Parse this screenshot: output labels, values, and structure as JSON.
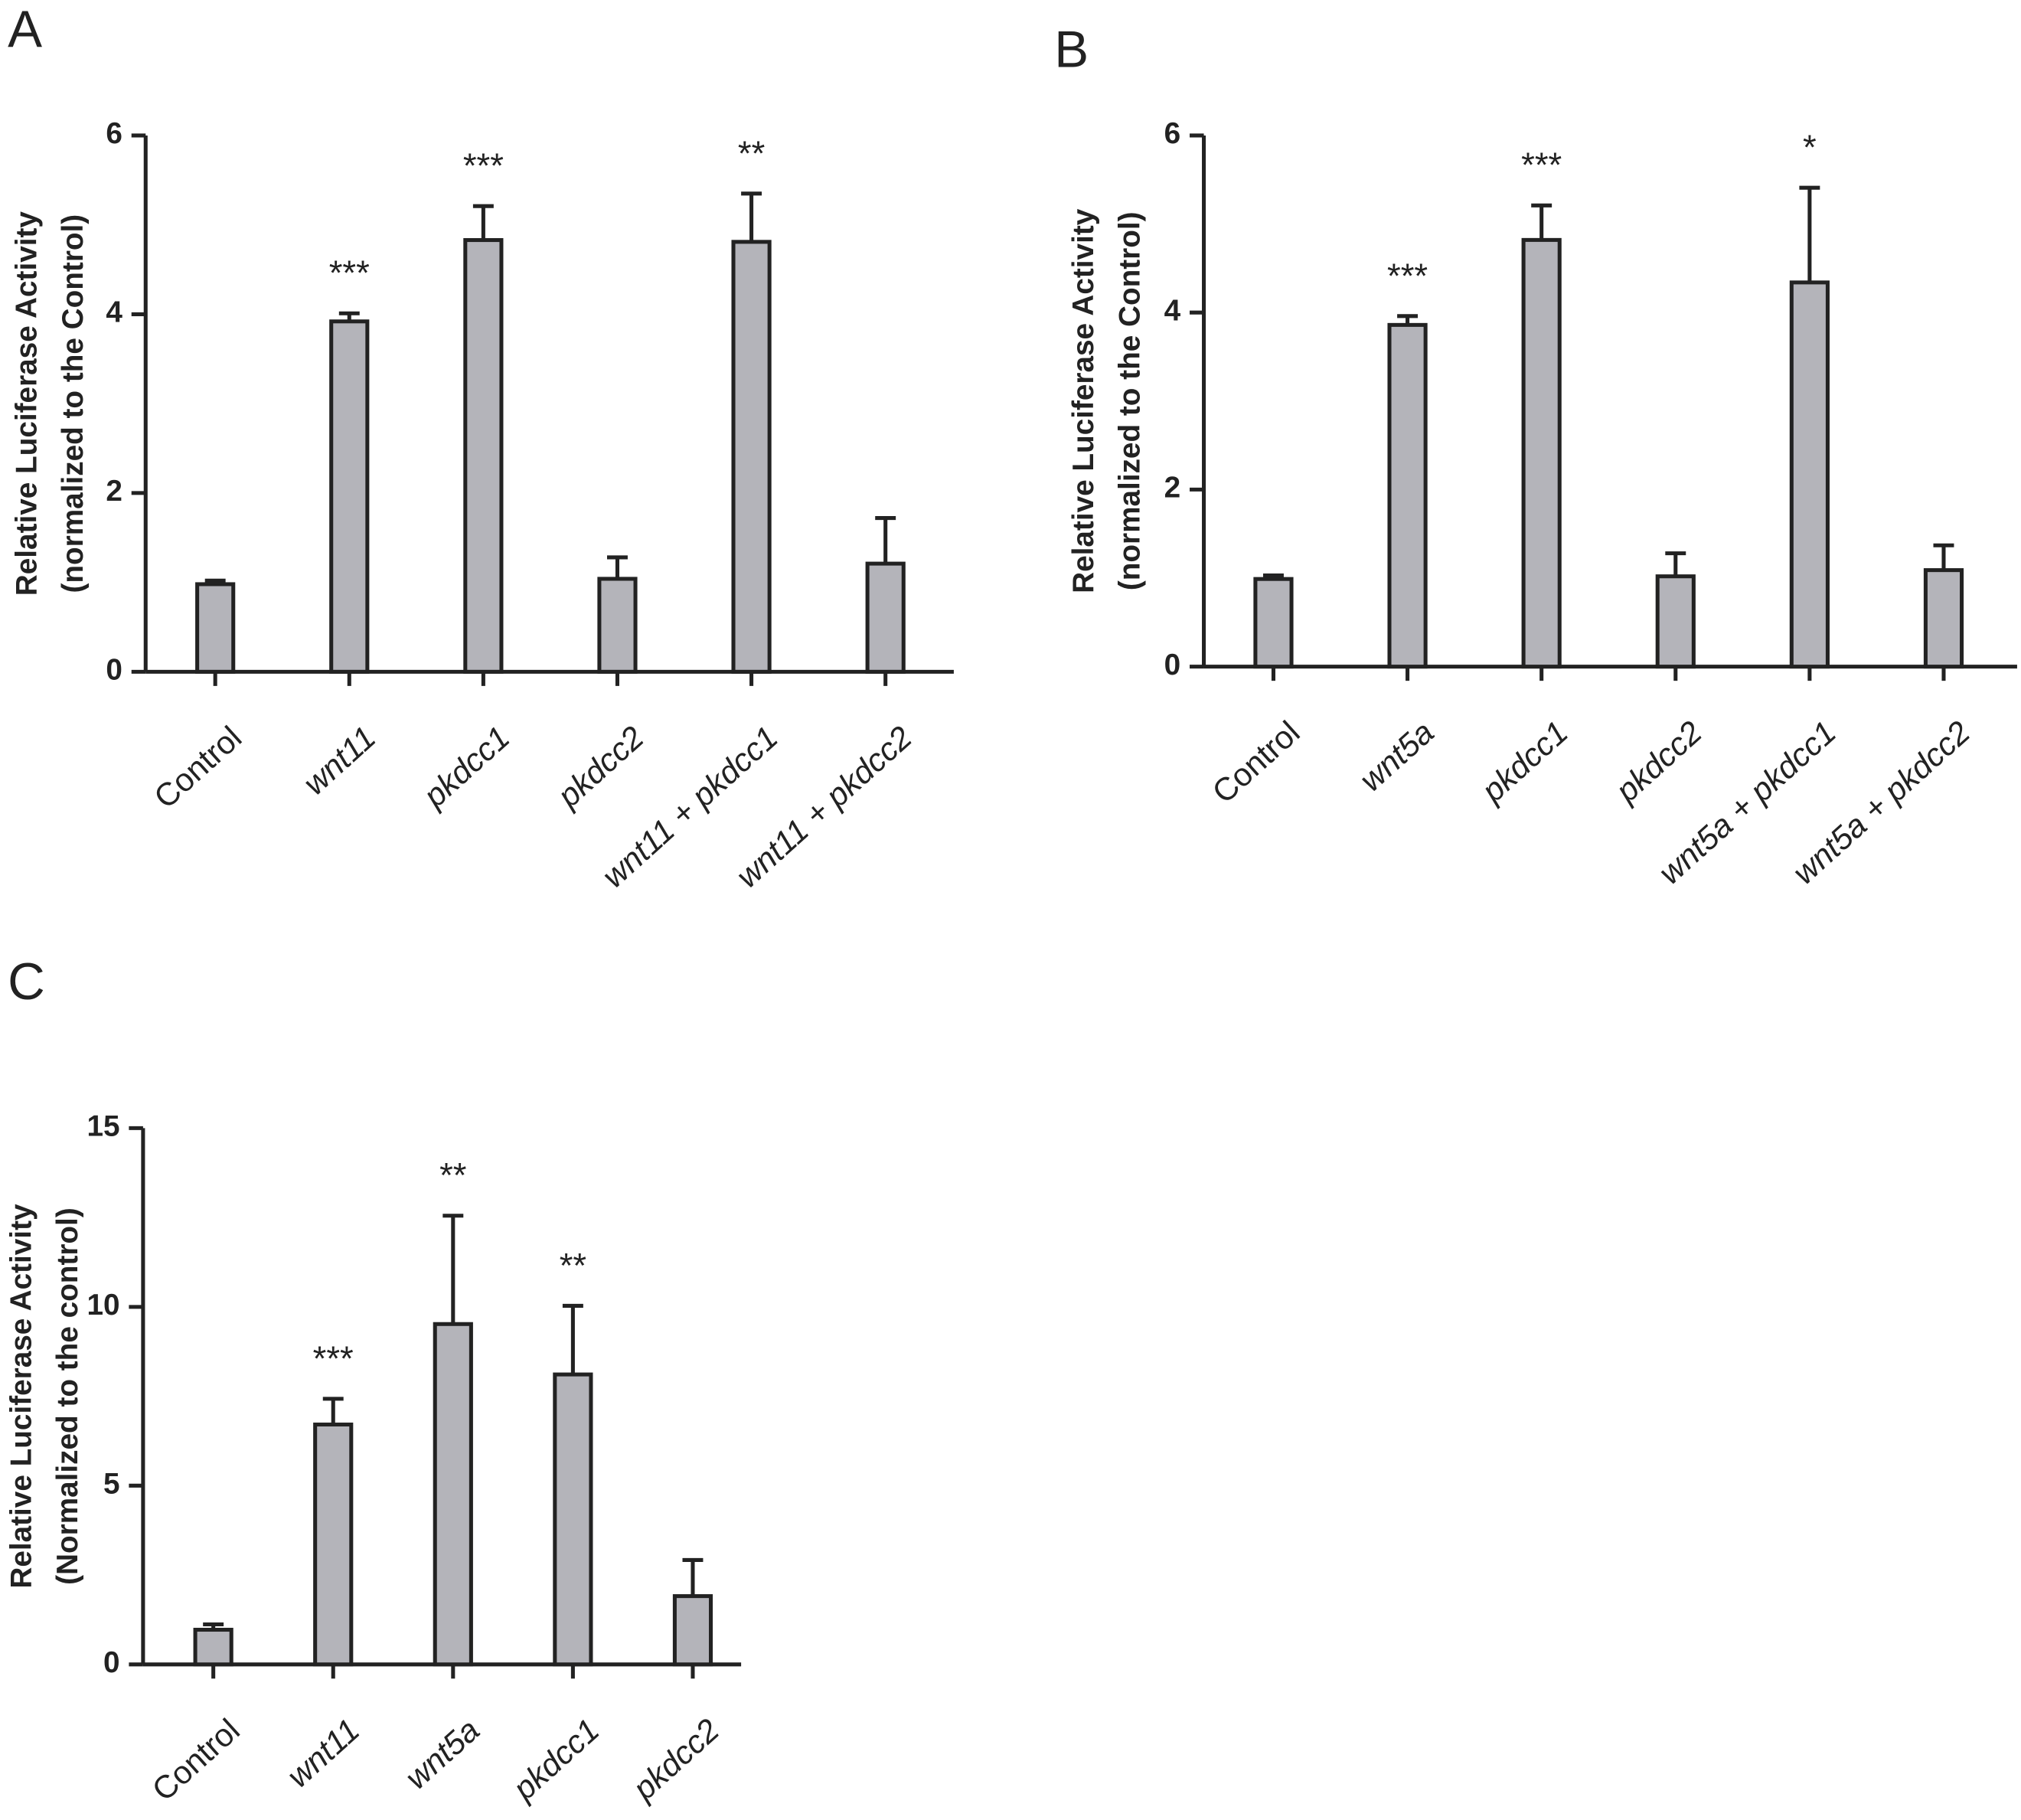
{
  "chart_data": [
    {
      "type": "bar",
      "panel_label": "A",
      "ylabel": [
        "Relative Luciferase Activity",
        "(normalized to the Control)"
      ],
      "categories": [
        "Control",
        "wnt11",
        "pkdcc1",
        "pkdcc2",
        "wnt11 + pkdcc1",
        "wnt11 + pkdcc2"
      ],
      "values": [
        0.98,
        3.92,
        4.83,
        1.04,
        4.81,
        1.21
      ],
      "errors": [
        0.04,
        0.09,
        0.38,
        0.24,
        0.54,
        0.51
      ],
      "annotations": [
        null,
        "***",
        "***",
        null,
        "**",
        null
      ],
      "color": "#b4b4ba",
      "ylim": [
        0,
        6
      ],
      "yticks": [
        0,
        2,
        4,
        6
      ]
    },
    {
      "type": "bar",
      "panel_label": "B",
      "ylabel": [
        "Relative Luciferase Activity",
        "(normalized to the Control)"
      ],
      "categories": [
        "Control",
        "wnt5a",
        "pkdcc1",
        "pkdcc2",
        "wnt5a + pkdcc1",
        "wnt5a + pkdcc2"
      ],
      "values": [
        0.99,
        3.86,
        4.82,
        1.02,
        4.34,
        1.09
      ],
      "errors": [
        0.04,
        0.1,
        0.39,
        0.26,
        1.07,
        0.28
      ],
      "annotations": [
        null,
        "***",
        "***",
        null,
        "*",
        null
      ],
      "color": "#b4b4ba",
      "ylim": [
        0,
        6
      ],
      "yticks": [
        0,
        2,
        4,
        6
      ]
    },
    {
      "type": "bar",
      "panel_label": "C",
      "ylabel": [
        "Relative Luciferase Activity",
        "(Normalized to the control)"
      ],
      "categories": [
        "Control",
        "wnt11",
        "wnt5a",
        "pkdcc1",
        "pkdcc2"
      ],
      "values": [
        0.97,
        6.71,
        9.52,
        8.11,
        1.91
      ],
      "errors": [
        0.15,
        0.72,
        3.03,
        1.92,
        1.01
      ],
      "annotations": [
        null,
        "***",
        "**",
        "**",
        null
      ],
      "color": "#b4b4ba",
      "ylim": [
        0,
        15
      ],
      "yticks": [
        0,
        5,
        10,
        15
      ]
    }
  ]
}
